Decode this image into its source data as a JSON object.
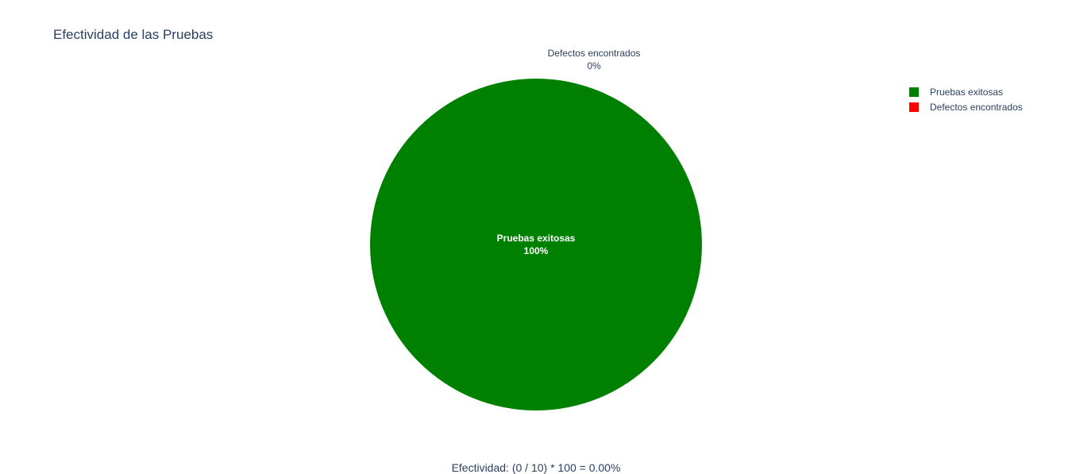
{
  "chart_data": {
    "type": "pie",
    "title": "Efectividad de las Pruebas",
    "slices": [
      {
        "label": "Pruebas exitosas",
        "value": 100,
        "percent_label": "100%",
        "color": "#008000"
      },
      {
        "label": "Defectos encontrados",
        "value": 0,
        "percent_label": "0%",
        "color": "#ff0000"
      }
    ],
    "legend_position": "top-right",
    "annotation": "Efectividad: (0 / 10) * 100 = 0.00%"
  }
}
